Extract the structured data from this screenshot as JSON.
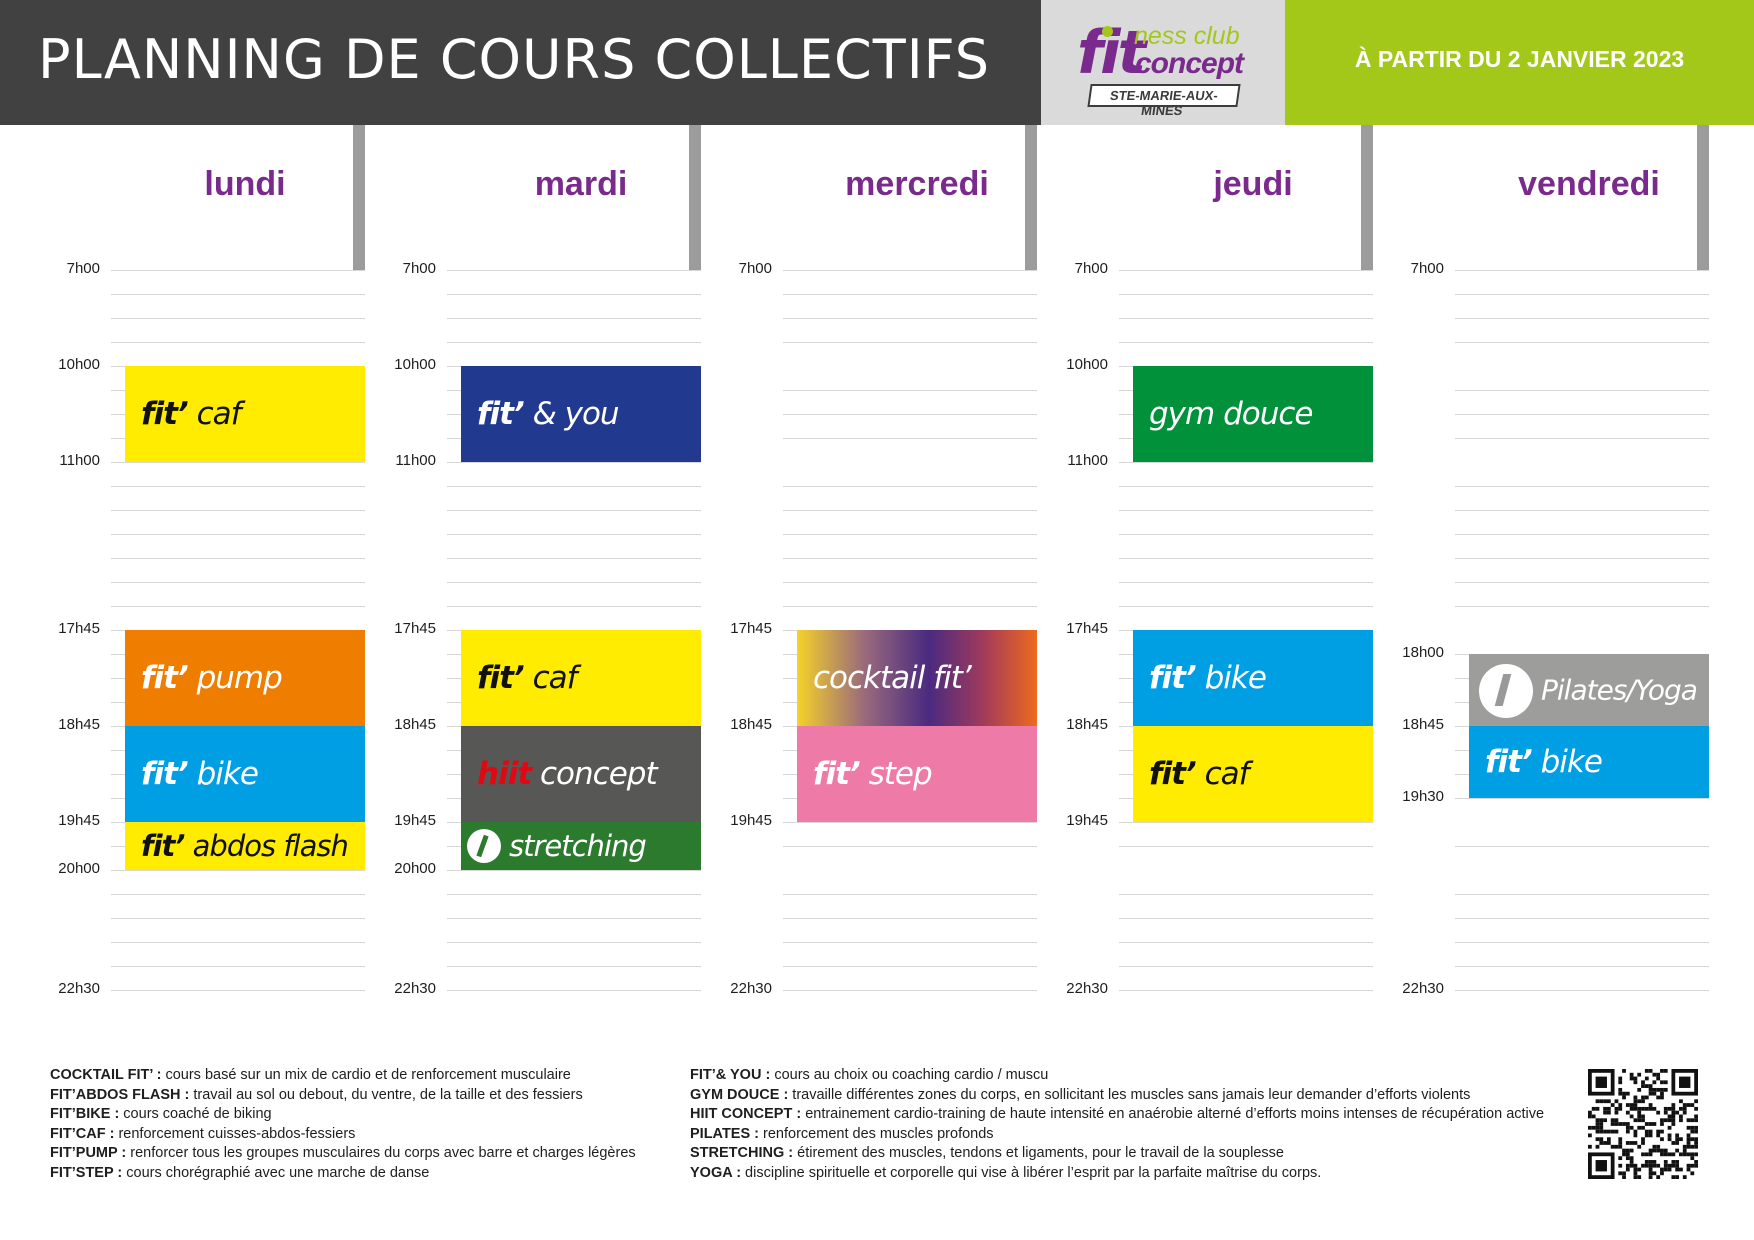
{
  "header": {
    "title": "PLANNING DE COURS COLLECTIFS",
    "date": "À PARTIR DU 2 JANVIER 2023",
    "logo": {
      "fit": "fit",
      "ness": "ness club",
      "concept": "concept",
      "subtitle": "STE-MARIE-AUX-MINES"
    }
  },
  "days": [
    {
      "name": "lundi",
      "times": [
        "7h00",
        "10h00",
        "11h00",
        "17h45",
        "18h45",
        "19h45",
        "20h00",
        "22h30"
      ],
      "classes": [
        {
          "pre": "fit’",
          "name": "caf",
          "start": "10h00",
          "end": "11h00",
          "color": "#ffec00",
          "text_color": "#111111"
        },
        {
          "pre": "fit’",
          "name": "pump",
          "start": "17h45",
          "end": "18h45",
          "color": "#ef7d00",
          "text_color": "#ffffff"
        },
        {
          "pre": "fit’",
          "name": "bike",
          "start": "18h45",
          "end": "19h45",
          "color": "#009fe3",
          "text_color": "#ffffff"
        },
        {
          "pre": "fit’",
          "name": "abdos flash",
          "start": "19h45",
          "end": "20h00",
          "color": "#ffec00",
          "text_color": "#111111"
        }
      ]
    },
    {
      "name": "mardi",
      "times": [
        "7h00",
        "10h00",
        "11h00",
        "17h45",
        "18h45",
        "19h45",
        "20h00",
        "22h30"
      ],
      "classes": [
        {
          "pre": "fit’",
          "name": "& you",
          "start": "10h00",
          "end": "11h00",
          "color": "#213a8f",
          "text_color": "#ffffff"
        },
        {
          "pre": "fit’",
          "name": "caf",
          "start": "17h45",
          "end": "18h45",
          "color": "#ffec00",
          "text_color": "#111111"
        },
        {
          "pre": "hiit",
          "name": "concept",
          "start": "18h45",
          "end": "19h45",
          "color": "#575756",
          "text_color": "#ffffff",
          "pre_color": "#e30613"
        },
        {
          "pre": "",
          "name": "stretching",
          "start": "19h45",
          "end": "20h00",
          "color": "#2b7a2e",
          "text_color": "#ffffff",
          "icon": "stretching-icon"
        }
      ]
    },
    {
      "name": "mercredi",
      "times": [
        "7h00",
        "17h45",
        "18h45",
        "19h45",
        "22h30"
      ],
      "classes": [
        {
          "pre": "",
          "name": "cocktail fit’",
          "start": "17h45",
          "end": "18h45",
          "color": "#4a2a80",
          "text_color": "#ffffff",
          "gradient": true
        },
        {
          "pre": "fit’",
          "name": "step",
          "start": "18h45",
          "end": "19h45",
          "color": "#ee7aa8",
          "text_color": "#ffffff"
        }
      ]
    },
    {
      "name": "jeudi",
      "times": [
        "7h00",
        "10h00",
        "11h00",
        "17h45",
        "18h45",
        "19h45",
        "22h30"
      ],
      "classes": [
        {
          "pre": "",
          "name": "gym douce",
          "start": "10h00",
          "end": "11h00",
          "color": "#00913a",
          "text_color": "#ffffff"
        },
        {
          "pre": "fit’",
          "name": "bike",
          "start": "17h45",
          "end": "18h45",
          "color": "#009fe3",
          "text_color": "#ffffff"
        },
        {
          "pre": "fit’",
          "name": "caf",
          "start": "18h45",
          "end": "19h45",
          "color": "#ffec00",
          "text_color": "#111111"
        }
      ]
    },
    {
      "name": "vendredi",
      "times": [
        "7h00",
        "18h00",
        "18h45",
        "19h30",
        "22h30"
      ],
      "classes": [
        {
          "pre": "",
          "name": "Pilates/Yoga",
          "start": "18h00",
          "end": "18h45",
          "color": "#9d9d9c",
          "text_color": "#ffffff",
          "icon": "pilates-icon"
        },
        {
          "pre": "fit’",
          "name": "bike",
          "start": "18h45",
          "end": "19h30",
          "color": "#009fe3",
          "text_color": "#ffffff"
        }
      ]
    }
  ],
  "legend_left": [
    {
      "key": "COCKTAIL FIT’ :",
      "text": " cours basé sur un mix de cardio et de renforcement musculaire"
    },
    {
      "key": "FIT’ABDOS FLASH :",
      "text": " travail au sol ou debout, du ventre, de la taille et des fessiers"
    },
    {
      "key": "FIT’BIKE :",
      "text": " cours coaché de biking"
    },
    {
      "key": "FIT’CAF :",
      "text": " renforcement cuisses-abdos-fessiers"
    },
    {
      "key": "FIT’PUMP :",
      "text": " renforcer tous les groupes musculaires du corps avec barre et charges légères"
    },
    {
      "key": "FIT’STEP :",
      "text": " cours chorégraphié avec une marche de danse"
    }
  ],
  "legend_right": [
    {
      "key": "FIT’& YOU :",
      "text": " cours au choix ou coaching cardio / muscu"
    },
    {
      "key": "GYM DOUCE :",
      "text": " travaille différentes zones du corps, en sollicitant les muscles sans jamais leur demander d’efforts violents"
    },
    {
      "key": "HIIT CONCEPT :",
      "text": " entrainement cardio-training de haute intensité en anaérobie alterné d’efforts moins intenses de récupération active"
    },
    {
      "key": "PILATES :",
      "text": " renforcement des muscles profonds"
    },
    {
      "key": "STRETCHING :",
      "text": " étirement des muscles, tendons et ligaments, pour le travail de la souplesse"
    },
    {
      "key": "YOGA :",
      "text": " discipline spirituelle et corporelle qui vise à libérer l’esprit par la parfaite maîtrise du corps."
    }
  ]
}
